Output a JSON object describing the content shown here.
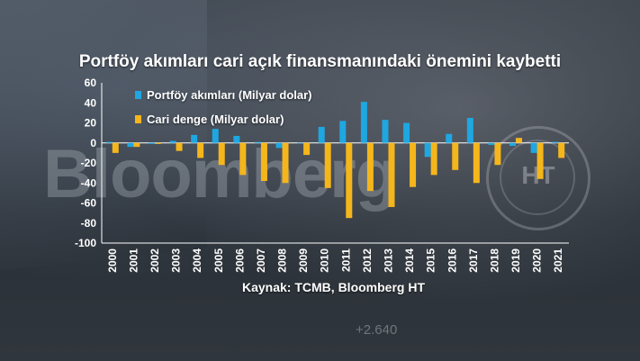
{
  "title": "Portföy akımları cari açık finansmanındaki önemini kaybetti",
  "source": "Kaynak: TCMB, Bloomberg HT",
  "watermark": {
    "brand": "Bloomberg",
    "logo_text": "HT",
    "background_number": "+2.640"
  },
  "colors": {
    "portfolio": "#1ea7e1",
    "current_account": "#f5b61c",
    "text": "#ffffff"
  },
  "chart_data": {
    "type": "bar",
    "title": "Portföy akımları cari açık finansmanındaki önemini kaybetti",
    "categories": [
      "2000",
      "2001",
      "2002",
      "2003",
      "2004",
      "2005",
      "2006",
      "2007",
      "2008",
      "2009",
      "2010",
      "2011",
      "2012",
      "2013",
      "2014",
      "2015",
      "2016",
      "2017",
      "2018",
      "2019",
      "2020",
      "2021"
    ],
    "series": [
      {
        "name": "Portföy akımları (Milyar dolar)",
        "values": [
          1,
          -4,
          -1,
          2,
          8,
          14,
          7,
          1,
          -5,
          0,
          16,
          22,
          41,
          23,
          20,
          -14,
          9,
          25,
          -2,
          -3,
          -10,
          1
        ]
      },
      {
        "name": "Cari denge (Milyar dolar)",
        "values": [
          -10,
          -4,
          -1,
          -8,
          -15,
          -22,
          -32,
          -38,
          -40,
          -12,
          -45,
          -75,
          -48,
          -64,
          -44,
          -32,
          -27,
          -40,
          -22,
          5,
          -36,
          -15
        ]
      }
    ],
    "ylim": [
      -100,
      60
    ],
    "yticks": [
      60,
      40,
      20,
      0,
      -20,
      -40,
      -60,
      -80,
      -100
    ],
    "legend_position": "top-left",
    "grid": false
  }
}
